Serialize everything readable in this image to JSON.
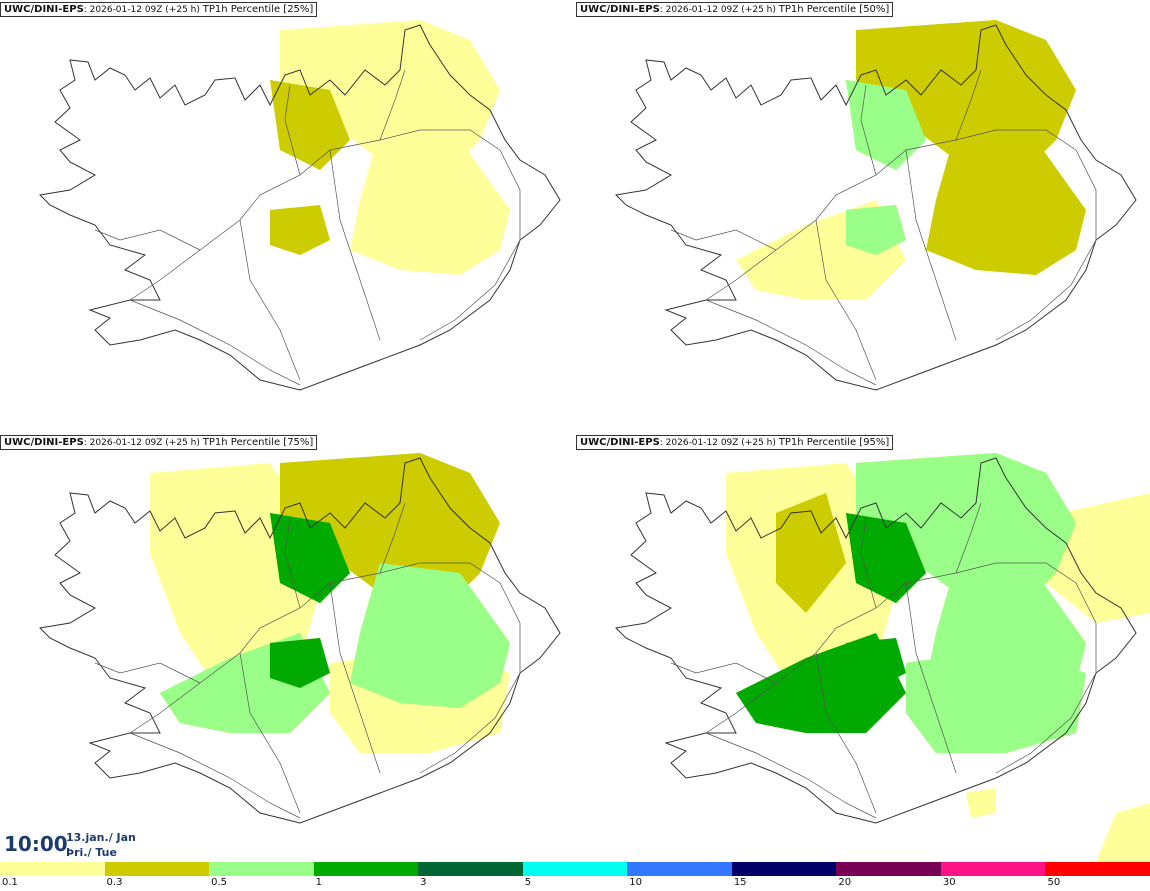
{
  "panels": [
    {
      "model": "UWC/DINI-EPS",
      "run": ": 2026-01-12 09Z (+25 h)",
      "param": "TP1h Percentile [25%]",
      "level": 1
    },
    {
      "model": "UWC/DINI-EPS",
      "run": ": 2026-01-12 09Z (+25 h)",
      "param": "TP1h Percentile [50%]",
      "level": 2
    },
    {
      "model": "UWC/DINI-EPS",
      "run": ": 2026-01-12 09Z (+25 h)",
      "param": "TP1h Percentile [75%]",
      "level": 3
    },
    {
      "model": "UWC/DINI-EPS",
      "run": ": 2026-01-12 09Z (+25 h)",
      "param": "TP1h Percentile [95%]",
      "level": 4
    }
  ],
  "valid": {
    "time": "10:00",
    "date_line1": "13.jan./ Jan",
    "date_line2": "Þri./ Tue"
  },
  "legend": {
    "colors": [
      "#ffff99",
      "#cccc00",
      "#99ff88",
      "#00aa00",
      "#006633",
      "#00ffee",
      "#3377ff",
      "#000066",
      "#770055",
      "#ff1188",
      "#ff0000"
    ],
    "labels": [
      "0.1",
      "0.3",
      "0.5",
      "1",
      "3",
      "5",
      "10",
      "15",
      "20",
      "30",
      "50"
    ]
  }
}
